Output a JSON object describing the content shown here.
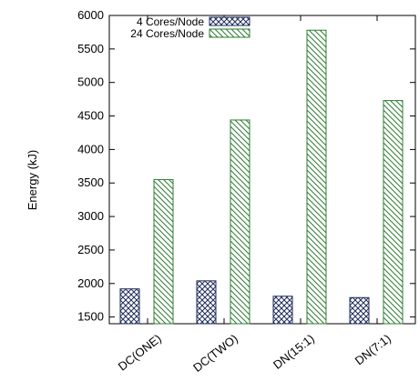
{
  "chart_data": {
    "type": "bar",
    "categories": [
      "DC(ONE)",
      "DC(TWO)",
      "DN(15:1)",
      "DN(7:1)"
    ],
    "series": [
      {
        "name": "4 Cores/Node",
        "values": [
          1920,
          2040,
          1810,
          1790
        ],
        "color": "#1f2d5a",
        "pattern": "crosshatch"
      },
      {
        "name": "24 Cores/Node",
        "values": [
          3550,
          4440,
          5780,
          4730
        ],
        "color": "#2e7d32",
        "pattern": "diagonal"
      }
    ],
    "ylabel": "Energy (kJ)",
    "xlabel": "",
    "ylim": [
      1400,
      6000
    ],
    "yticks": [
      1500,
      2000,
      2500,
      3000,
      3500,
      4000,
      4500,
      5000,
      5500,
      6000
    ],
    "legend_position": "top-left",
    "grid": false
  }
}
